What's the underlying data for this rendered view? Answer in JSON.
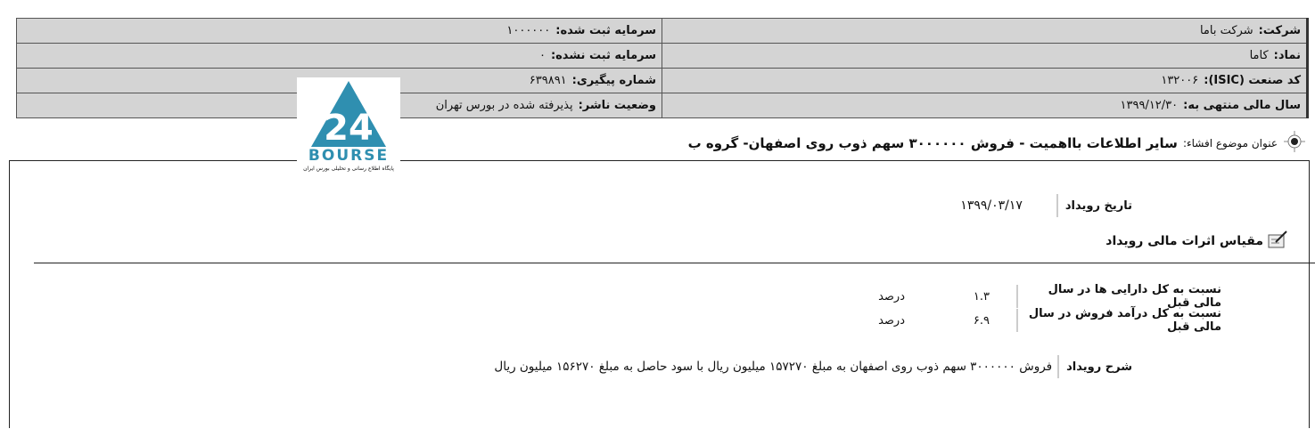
{
  "info_table": [
    {
      "right_label": "شرکت:",
      "right_value": "شرکت باما",
      "left_label": "سرمایه ثبت شده:",
      "left_value": "۱۰۰۰۰۰۰"
    },
    {
      "right_label": "نماد:",
      "right_value": "کاما",
      "left_label": "سرمایه ثبت نشده:",
      "left_value": "۰"
    },
    {
      "right_label": "کد صنعت (ISIC):",
      "right_value": "۱۳۲۰۰۶",
      "left_label": "شماره پیگیری:",
      "left_value": "۶۳۹۸۹۱"
    },
    {
      "right_label": "سال مالی منتهی به:",
      "right_value": "۱۳۹۹/۱۲/۳۰",
      "left_label": "وضعیت ناشر:",
      "left_value": "پذیرفته شده در بورس تهران"
    }
  ],
  "logo": {
    "text": "BOURSE",
    "number": "24",
    "tagline": "پایگاه اطلاع رسانی و تحلیلی بورس ایران",
    "color": "#2f8fb0"
  },
  "disclosure": {
    "label": "عنوان موضوع افشاء:",
    "title": "سایر اطلاعات بااهمیت - فروش ۳۰۰۰۰۰۰ سهم ذوب روی اصفهان- گروه ب"
  },
  "event_date": {
    "label": "تاریخ رویداد",
    "value": "۱۳۹۹/۰۳/۱۷"
  },
  "section_title": "مقیاس اثرات مالی رویداد",
  "ratios": [
    {
      "label": "نسبت به کل دارایی ها در سال مالی قبل",
      "value": "۱.۳",
      "unit": "درصد"
    },
    {
      "label": "نسبت به کل درآمد فروش در سال مالی قبل",
      "value": "۶.۹",
      "unit": "درصد"
    }
  ],
  "description": {
    "label": "شرح رویداد",
    "value": "فروش ۳۰۰۰۰۰۰ سهم ذوب روی اصفهان به مبلغ ۱۵۷۲۷۰ میلیون ریال با سود حاصل به مبلغ ۱۵۶۲۷۰ میلیون ریال"
  }
}
